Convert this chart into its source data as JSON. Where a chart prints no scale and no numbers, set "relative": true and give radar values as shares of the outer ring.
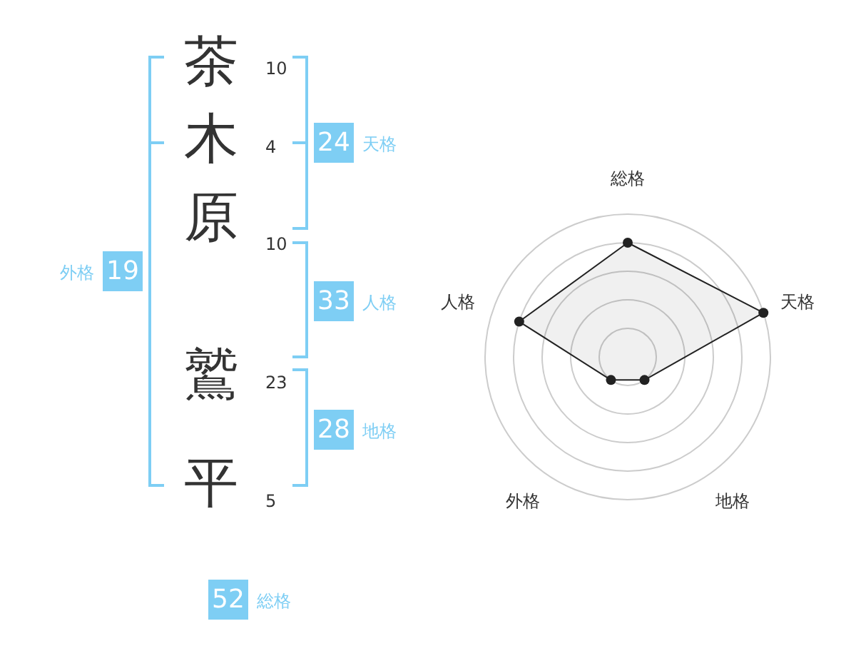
{
  "chart_data": [
    {
      "type": "other",
      "categories": [
        "茶",
        "木",
        "原",
        "鷲",
        "平"
      ],
      "values": [
        10,
        4,
        10,
        23,
        5
      ],
      "data_labels": true,
      "color": "#7ecef4",
      "annotations": [
        "24",
        "天格",
        "33",
        "人格",
        "28",
        "地格",
        "19",
        "外格",
        "52",
        "総格"
      ]
    },
    {
      "type": "radar",
      "categories": [
        "総格",
        "天格",
        "地格",
        "外格",
        "人格"
      ],
      "relative": true,
      "grid": true,
      "marker": "circle",
      "series": [
        {
          "color": "#222222",
          "values": [
            0.8,
            1,
            0.2,
            0.2,
            0.8
          ]
        }
      ]
    }
  ]
}
